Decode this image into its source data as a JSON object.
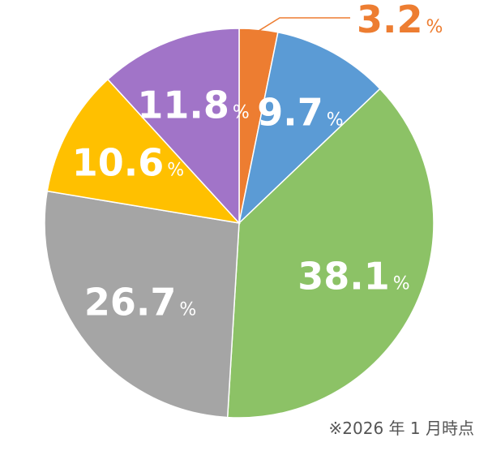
{
  "chart_data": {
    "type": "pie",
    "categories": [
      null,
      null,
      null,
      null,
      null,
      null
    ],
    "values": [
      3.2,
      9.7,
      38.1,
      26.7,
      10.6,
      11.8
    ],
    "colors": [
      "#ED7D31",
      "#5B9BD5",
      "#8CC266",
      "#A5A5A5",
      "#FFC000",
      "#A174C8"
    ],
    "unit": "%",
    "note": "※2026 年 1 月時点"
  }
}
